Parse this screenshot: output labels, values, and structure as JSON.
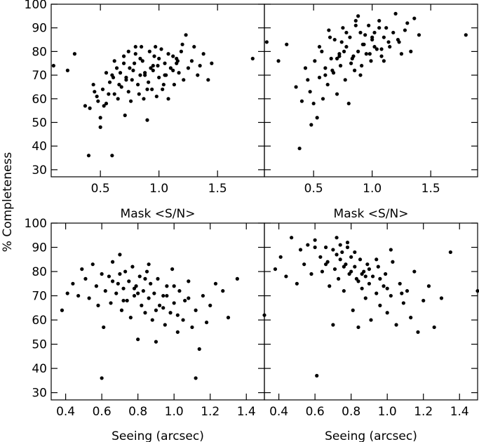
{
  "figure": {
    "ylabel": "% Completeness"
  },
  "chart_data": [
    {
      "type": "scatter",
      "xlabel": "Mask <S/N>",
      "ylabel": "% Completeness",
      "xlim": [
        0.08,
        1.9
      ],
      "ylim": [
        27,
        100
      ],
      "xticks": [
        0.5,
        1.0,
        1.5
      ],
      "xtick_labels": [
        "0.5",
        "1.0",
        "1.5"
      ],
      "yticks": [
        30,
        40,
        50,
        60,
        70,
        80,
        90,
        100
      ],
      "ytick_labels": [
        "30",
        "40",
        "50",
        "60",
        "70",
        "80",
        "90",
        "100"
      ],
      "series": [
        {
          "x": [
            0.1,
            0.22,
            0.28,
            0.37,
            0.4,
            0.41,
            0.44,
            0.47,
            0.48,
            0.5,
            0.5,
            0.52,
            0.53,
            0.55,
            0.57,
            0.58,
            0.6,
            0.61,
            0.62,
            0.64,
            0.65,
            0.67,
            0.68,
            0.7,
            0.71,
            0.72,
            0.74,
            0.75,
            0.76,
            0.78,
            0.79,
            0.8,
            0.82,
            0.83,
            0.84,
            0.86,
            0.87,
            0.88,
            0.9,
            0.91,
            0.92,
            0.94,
            0.95,
            0.96,
            0.98,
            0.99,
            1.0,
            1.02,
            1.03,
            1.05,
            1.06,
            1.08,
            1.1,
            1.12,
            1.13,
            1.15,
            1.17,
            1.19,
            1.21,
            1.23,
            1.25,
            1.28,
            1.3,
            1.33,
            1.35,
            1.38,
            1.42,
            1.45,
            1.8,
            0.45,
            0.55,
            0.6,
            0.66,
            0.7,
            0.74,
            0.77,
            0.8,
            0.84,
            0.88,
            0.9,
            0.93,
            0.97,
            1.0,
            1.04,
            1.08,
            1.12,
            1.16,
            1.2,
            0.62,
            0.72,
            0.85,
            0.95,
            1.05,
            1.15
          ],
          "y": [
            74,
            72,
            79,
            57,
            36,
            56,
            66,
            61,
            59,
            48,
            52,
            64,
            57,
            71,
            62,
            67,
            36,
            69,
            62,
            73,
            60,
            71,
            65,
            78,
            53,
            68,
            63,
            73,
            59,
            72,
            75,
            79,
            66,
            62,
            70,
            76,
            60,
            71,
            51,
            67,
            80,
            64,
            72,
            78,
            61,
            74,
            69,
            81,
            64,
            75,
            70,
            60,
            73,
            78,
            66,
            75,
            71,
            80,
            68,
            87,
            73,
            76,
            82,
            70,
            74,
            79,
            68,
            75,
            77,
            63,
            58,
            70,
            66,
            75,
            80,
            68,
            82,
            77,
            70,
            64,
            73,
            82,
            77,
            66,
            79,
            72,
            76,
            83,
            76,
            69,
            82,
            74,
            70,
            77
          ]
        }
      ]
    },
    {
      "type": "scatter",
      "xlabel": "Mask <S/N>",
      "ylabel": "",
      "xlim": [
        0.08,
        1.9
      ],
      "ylim": [
        27,
        100
      ],
      "xticks": [
        0.5,
        1.0,
        1.5
      ],
      "xtick_labels": [
        "0.5",
        "1.0",
        "1.5"
      ],
      "yticks": [
        30,
        40,
        50,
        60,
        70,
        80,
        90,
        100
      ],
      "ytick_labels": [],
      "series": [
        {
          "x": [
            0.1,
            0.2,
            0.27,
            0.35,
            0.38,
            0.4,
            0.43,
            0.45,
            0.47,
            0.48,
            0.5,
            0.51,
            0.53,
            0.55,
            0.57,
            0.58,
            0.6,
            0.62,
            0.63,
            0.65,
            0.67,
            0.68,
            0.7,
            0.72,
            0.73,
            0.75,
            0.77,
            0.78,
            0.8,
            0.81,
            0.83,
            0.85,
            0.86,
            0.88,
            0.9,
            0.91,
            0.93,
            0.95,
            0.97,
            0.99,
            1.0,
            1.02,
            1.04,
            1.06,
            1.08,
            1.1,
            1.12,
            1.15,
            1.18,
            1.2,
            1.23,
            1.25,
            1.28,
            1.3,
            1.33,
            1.36,
            1.4,
            1.8,
            0.55,
            0.6,
            0.64,
            0.7,
            0.74,
            0.78,
            0.82,
            0.86,
            0.9,
            0.94,
            0.98,
            1.02,
            1.06,
            1.1,
            1.14,
            1.22,
            0.66,
            0.76,
            0.84,
            0.92,
            1.0,
            1.08,
            0.72,
            0.88
          ],
          "y": [
            84,
            76,
            83,
            65,
            39,
            59,
            73,
            68,
            63,
            49,
            58,
            76,
            52,
            69,
            80,
            60,
            73,
            66,
            89,
            77,
            71,
            85,
            62,
            79,
            74,
            90,
            68,
            82,
            58,
            86,
            77,
            72,
            93,
            80,
            88,
            74,
            83,
            79,
            91,
            76,
            85,
            88,
            81,
            93,
            78,
            86,
            90,
            82,
            88,
            96,
            84,
            79,
            89,
            92,
            80,
            94,
            87,
            87,
            82,
            70,
            86,
            77,
            84,
            88,
            75,
            91,
            70,
            87,
            79,
            82,
            90,
            76,
            84,
            85,
            72,
            80,
            78,
            83,
            86,
            81,
            78,
            95
          ]
        }
      ]
    },
    {
      "type": "scatter",
      "xlabel": "Seeing (arcsec)",
      "ylabel": "% Completeness",
      "xlim": [
        0.32,
        1.5
      ],
      "ylim": [
        27,
        100
      ],
      "xticks": [
        0.4,
        0.6,
        0.8,
        1.0,
        1.2,
        1.4
      ],
      "xtick_labels": [
        "0.4",
        "0.6",
        "0.8",
        "1.0",
        "1.2",
        "1.4"
      ],
      "yticks": [
        30,
        40,
        50,
        60,
        70,
        80,
        90,
        100
      ],
      "ytick_labels": [
        "30",
        "40",
        "50",
        "60",
        "70",
        "80",
        "90",
        "100"
      ],
      "series": [
        {
          "x": [
            0.38,
            0.41,
            0.44,
            0.47,
            0.49,
            0.51,
            0.53,
            0.55,
            0.57,
            0.58,
            0.6,
            0.61,
            0.62,
            0.64,
            0.65,
            0.66,
            0.68,
            0.69,
            0.7,
            0.71,
            0.72,
            0.73,
            0.74,
            0.75,
            0.76,
            0.77,
            0.78,
            0.79,
            0.8,
            0.81,
            0.82,
            0.83,
            0.84,
            0.85,
            0.86,
            0.87,
            0.88,
            0.89,
            0.9,
            0.91,
            0.92,
            0.94,
            0.95,
            0.96,
            0.98,
            0.99,
            1.0,
            1.02,
            1.03,
            1.05,
            1.06,
            1.08,
            1.1,
            1.12,
            1.14,
            1.16,
            1.18,
            1.2,
            1.23,
            1.27,
            1.3,
            1.35,
            1.5,
            0.6,
            1.12,
            0.66,
            0.72,
            0.78,
            0.84,
            0.9,
            0.96,
            1.02,
            1.08,
            0.7,
            0.8,
            0.86,
            0.94,
            1.0
          ],
          "y": [
            64,
            71,
            75,
            70,
            81,
            77,
            69,
            83,
            74,
            66,
            79,
            57,
            72,
            78,
            67,
            84,
            71,
            75,
            87,
            64,
            73,
            80,
            68,
            76,
            61,
            82,
            70,
            74,
            52,
            78,
            66,
            72,
            63,
            80,
            69,
            75,
            60,
            71,
            51,
            77,
            66,
            70,
            58,
            74,
            63,
            81,
            67,
            55,
            72,
            60,
            68,
            76,
            57,
            64,
            48,
            70,
            59,
            66,
            75,
            72,
            61,
            77,
            62,
            36,
            36,
            76,
            68,
            73,
            77,
            64,
            70,
            62,
            69,
            79,
            71,
            83,
            65,
            74
          ]
        }
      ]
    },
    {
      "type": "scatter",
      "xlabel": "Seeing (arcsec)",
      "ylabel": "",
      "xlim": [
        0.32,
        1.5
      ],
      "ylim": [
        27,
        100
      ],
      "xticks": [
        0.4,
        0.6,
        0.8,
        1.0,
        1.2,
        1.4
      ],
      "xtick_labels": [
        "0.4",
        "0.6",
        "0.8",
        "1.0",
        "1.2",
        "1.4"
      ],
      "yticks": [
        30,
        40,
        50,
        60,
        70,
        80,
        90,
        100
      ],
      "ytick_labels": [],
      "series": [
        {
          "x": [
            0.38,
            0.41,
            0.44,
            0.47,
            0.5,
            0.52,
            0.54,
            0.56,
            0.58,
            0.6,
            0.61,
            0.63,
            0.64,
            0.66,
            0.67,
            0.68,
            0.7,
            0.71,
            0.72,
            0.73,
            0.74,
            0.75,
            0.76,
            0.77,
            0.78,
            0.79,
            0.8,
            0.81,
            0.82,
            0.83,
            0.84,
            0.85,
            0.86,
            0.87,
            0.88,
            0.89,
            0.9,
            0.91,
            0.92,
            0.94,
            0.95,
            0.96,
            0.98,
            0.99,
            1.0,
            1.02,
            1.03,
            1.05,
            1.07,
            1.09,
            1.11,
            1.13,
            1.15,
            1.17,
            1.2,
            1.23,
            1.26,
            1.3,
            1.35,
            1.5,
            0.6,
            0.66,
            0.72,
            0.78,
            0.84,
            0.9,
            0.96,
            1.02,
            1.08,
            0.7,
            0.76,
            0.82,
            0.88,
            0.94,
            1.0,
            0.74,
            0.8,
            0.86
          ],
          "y": [
            81,
            86,
            78,
            94,
            75,
            89,
            83,
            91,
            79,
            93,
            37,
            86,
            80,
            90,
            84,
            74,
            89,
            81,
            94,
            77,
            85,
            88,
            72,
            83,
            90,
            79,
            86,
            64,
            82,
            77,
            57,
            85,
            73,
            80,
            69,
            83,
            75,
            60,
            78,
            71,
            82,
            66,
            74,
            79,
            63,
            70,
            84,
            58,
            75,
            67,
            72,
            61,
            80,
            55,
            68,
            74,
            57,
            69,
            88,
            72,
            90,
            83,
            87,
            92,
            76,
            81,
            77,
            89,
            71,
            58,
            82,
            88,
            78,
            85,
            73,
            91,
            80,
            79
          ]
        }
      ]
    }
  ]
}
